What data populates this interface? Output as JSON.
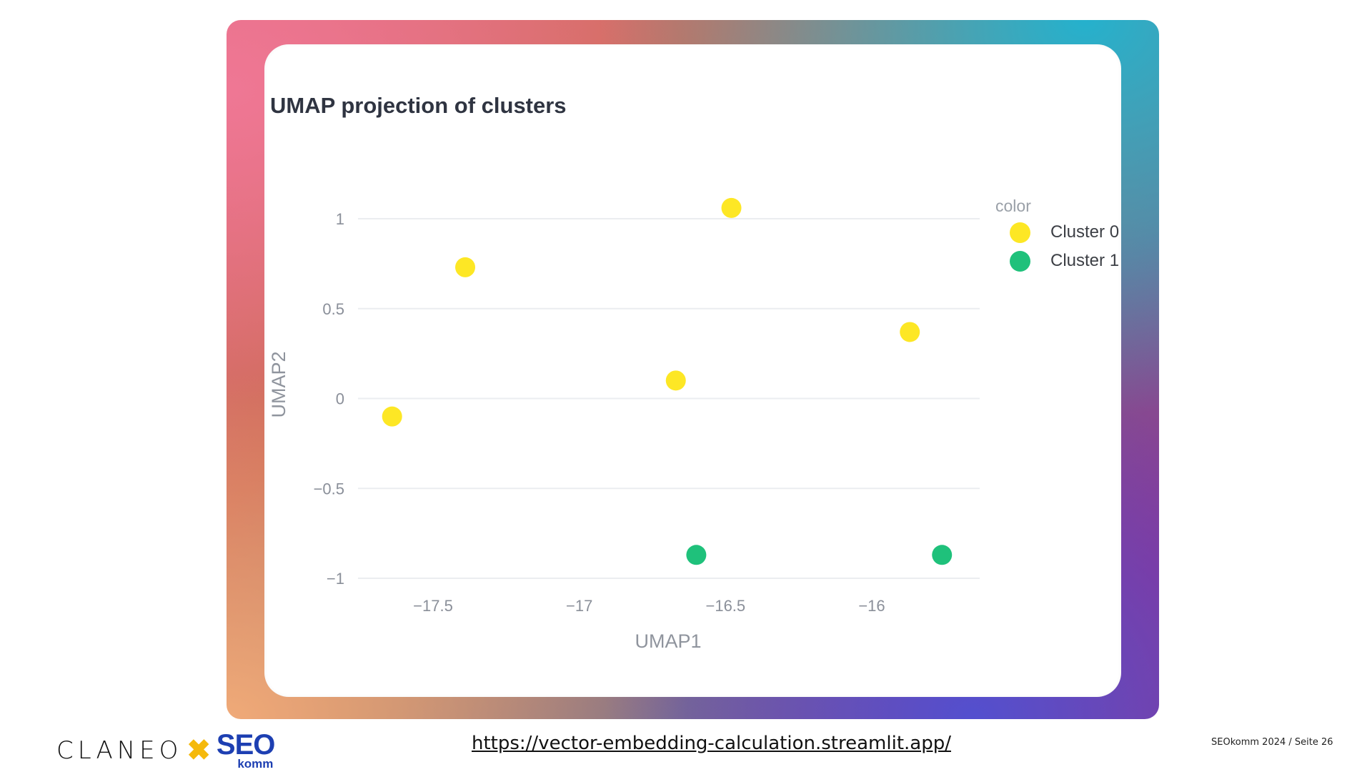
{
  "chart_data": {
    "type": "scatter",
    "title": "UMAP projection of clusters",
    "xlabel": "UMAP1",
    "ylabel": "UMAP2",
    "xlim": [
      -17.78,
      -15.62
    ],
    "ylim": [
      -1.08,
      1.12
    ],
    "x_ticks": [
      -17.5,
      -17,
      -16.5,
      -16
    ],
    "x_tick_labels": [
      "−17.5",
      "−17",
      "−16.5",
      "−16"
    ],
    "y_ticks": [
      1,
      0.5,
      0,
      -0.5,
      -1
    ],
    "y_tick_labels": [
      "1",
      "0.5",
      "0",
      "−0.5",
      "−1"
    ],
    "grid": true,
    "legend": {
      "title": "color",
      "placement": "right"
    },
    "series": [
      {
        "name": "Cluster 0",
        "color": "#FDE725",
        "points": [
          {
            "x": -17.64,
            "y": -0.1
          },
          {
            "x": -17.39,
            "y": 0.73
          },
          {
            "x": -16.67,
            "y": 0.1
          },
          {
            "x": -16.48,
            "y": 1.06
          },
          {
            "x": -15.87,
            "y": 0.37
          }
        ]
      },
      {
        "name": "Cluster 1",
        "color": "#1FC17B",
        "points": [
          {
            "x": -16.6,
            "y": -0.87
          },
          {
            "x": -15.76,
            "y": -0.87
          }
        ]
      }
    ]
  },
  "legend": {
    "title": "color",
    "items": [
      {
        "label": "Cluster 0",
        "color": "#FDE725"
      },
      {
        "label": "Cluster 1",
        "color": "#1FC17B"
      }
    ]
  },
  "footer": {
    "brand_left": "CLANEO",
    "brand_separator": "✖",
    "brand_right": "SEO",
    "brand_right_sub": "komm",
    "url": "https://vector-embedding-calculation.streamlit.app/",
    "page_label": "SEOkomm 2024 / Seite 26"
  }
}
